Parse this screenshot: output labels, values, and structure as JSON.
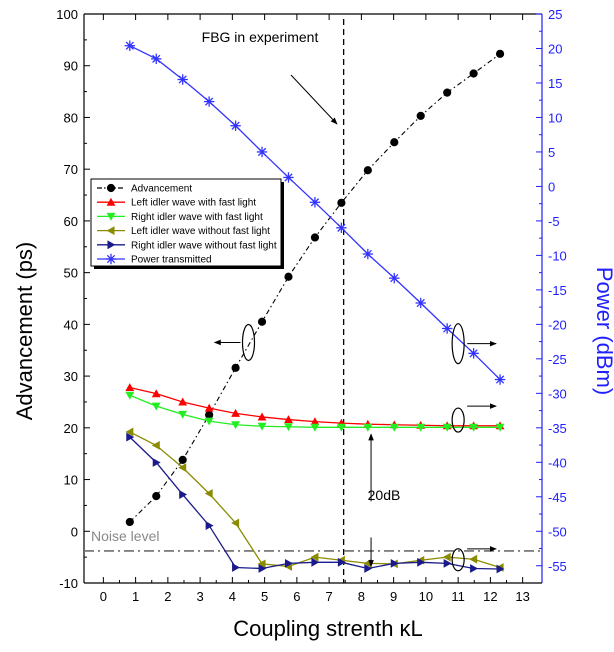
{
  "chart_data": {
    "type": "line",
    "xlabel": "Coupling strenth κL",
    "ylabel": "Advancement (ps)",
    "y2label": "Power (dBm)",
    "xlim": [
      -0.6,
      13.6
    ],
    "ylim": [
      -10,
      100
    ],
    "y2lim": [
      -57.5,
      25
    ],
    "x_ticks": [
      "0",
      "1",
      "2",
      "3",
      "4",
      "5",
      "6",
      "7",
      "8",
      "9",
      "10",
      "11",
      "12",
      "13"
    ],
    "y_ticks": [
      "-10",
      "0",
      "10",
      "20",
      "30",
      "40",
      "50",
      "60",
      "70",
      "80",
      "90",
      "100"
    ],
    "y2_ticks": [
      "-55",
      "-50",
      "-45",
      "-40",
      "-35",
      "-30",
      "-25",
      "-20",
      "-15",
      "-10",
      "-5",
      "0",
      "5",
      "10",
      "15",
      "20",
      "25"
    ],
    "right_axis_color": "#1f1fff",
    "annotations": {
      "fbg": "FBG in experiment",
      "db20": "20dB",
      "noise": "Noise level"
    },
    "fbg_x": 7.45,
    "noise_y": -3.8,
    "series": [
      {
        "name": "Advancement",
        "axis": "left",
        "color": "#000000",
        "marker": "circle",
        "dash": "dashdot",
        "x": [
          0.82,
          1.64,
          2.46,
          3.28,
          4.1,
          4.92,
          5.74,
          6.56,
          7.38,
          8.2,
          9.02,
          9.84,
          10.66,
          11.48,
          12.3
        ],
        "y": [
          1.8,
          6.8,
          13.8,
          22.5,
          31.6,
          40.5,
          49.2,
          56.8,
          63.5,
          69.8,
          75.2,
          80.3,
          84.8,
          88.5,
          92.3
        ]
      },
      {
        "name": "Left idler wave  with fast light",
        "axis": "left",
        "color": "#ff0000",
        "marker": "triangle-up",
        "dash": "solid",
        "x": [
          0.82,
          1.64,
          2.46,
          3.28,
          4.1,
          4.92,
          5.74,
          6.56,
          7.38,
          8.2,
          9.02,
          9.84,
          10.66,
          11.48,
          12.3
        ],
        "y": [
          27.8,
          26.6,
          25.0,
          23.8,
          22.8,
          22.1,
          21.6,
          21.2,
          20.9,
          20.7,
          20.6,
          20.5,
          20.4,
          20.4,
          20.4
        ]
      },
      {
        "name": "Right idler wave with fast light",
        "axis": "left",
        "color": "#22ee22",
        "marker": "triangle-down",
        "dash": "solid",
        "x": [
          0.82,
          1.64,
          2.46,
          3.28,
          4.1,
          4.92,
          5.74,
          6.56,
          7.38,
          8.2,
          9.02,
          9.84,
          10.66,
          11.48,
          12.3
        ],
        "y": [
          26.3,
          24.2,
          22.6,
          21.3,
          20.6,
          20.3,
          20.2,
          20.1,
          20.1,
          20.1,
          20.1,
          20.1,
          20.1,
          20.1,
          20.1
        ]
      },
      {
        "name": "Left idler wave without fast light",
        "axis": "left",
        "color": "#8b8b00",
        "marker": "triangle-left",
        "dash": "solid",
        "x": [
          0.82,
          1.64,
          2.46,
          3.28,
          4.1,
          4.92,
          5.74,
          6.56,
          7.38,
          8.2,
          9.02,
          9.84,
          10.66,
          11.48,
          12.3
        ],
        "y": [
          19.2,
          16.6,
          12.3,
          7.3,
          1.6,
          -6.3,
          -6.8,
          -5.0,
          -5.6,
          -6.2,
          -6.3,
          -5.6,
          -5.0,
          -5.4,
          -7.0
        ]
      },
      {
        "name": "Right idler wave without fast light",
        "axis": "left",
        "color": "#1a1a8c",
        "marker": "triangle-right",
        "dash": "solid",
        "x": [
          0.82,
          1.64,
          2.46,
          3.28,
          4.1,
          4.92,
          5.74,
          6.56,
          7.38,
          8.2,
          9.02,
          9.84,
          10.66,
          11.48,
          12.3
        ],
        "y": [
          18.2,
          13.3,
          7.1,
          1.1,
          -7.0,
          -7.2,
          -6.2,
          -6.0,
          -6.0,
          -7.2,
          -6.2,
          -6.0,
          -6.2,
          -7.2,
          -7.3
        ]
      },
      {
        "name": "Power transmitted",
        "axis": "right",
        "color": "#3333ff",
        "marker": "star",
        "dash": "solid",
        "x": [
          0.82,
          1.64,
          2.46,
          3.28,
          4.1,
          4.92,
          5.74,
          6.56,
          7.38,
          8.2,
          9.02,
          9.84,
          10.66,
          11.48,
          12.3
        ],
        "y": [
          20.4,
          18.5,
          15.5,
          12.3,
          8.8,
          5.0,
          1.3,
          -2.3,
          -6.0,
          -9.8,
          -13.3,
          -16.9,
          -20.6,
          -24.2,
          -28.0
        ]
      }
    ]
  }
}
